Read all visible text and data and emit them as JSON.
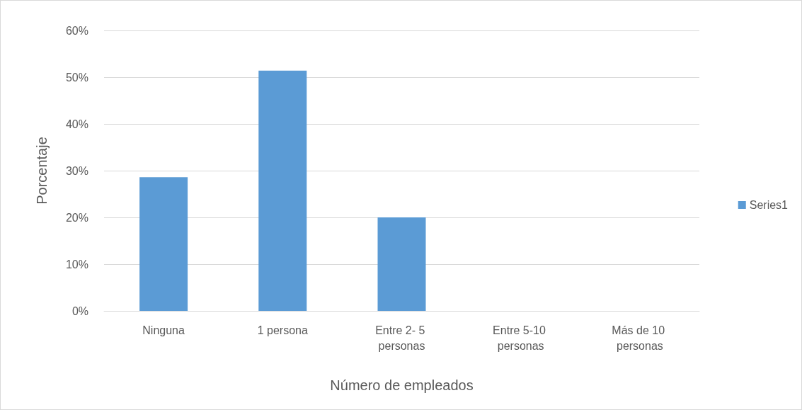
{
  "chart_data": {
    "type": "bar",
    "xlabel": "Número de empleados",
    "ylabel": "Porcentaje",
    "categories": [
      "Ninguna",
      "1 persona",
      "Entre 2- 5 personas",
      "Entre 5-10 personas",
      "Más de 10 personas"
    ],
    "series": [
      {
        "name": "Series1",
        "color": "#5b9bd5",
        "values": [
          28.6,
          51.4,
          20,
          0,
          0
        ]
      }
    ],
    "ylim": [
      0,
      60
    ],
    "yticks": [
      {
        "value": 0,
        "label": "0%"
      },
      {
        "value": 10,
        "label": "10%"
      },
      {
        "value": 20,
        "label": "20%"
      },
      {
        "value": 30,
        "label": "30%"
      },
      {
        "value": 40,
        "label": "40%"
      },
      {
        "value": 50,
        "label": "50%"
      },
      {
        "value": 60,
        "label": "60%"
      }
    ],
    "grid": "y",
    "legend": "right"
  }
}
